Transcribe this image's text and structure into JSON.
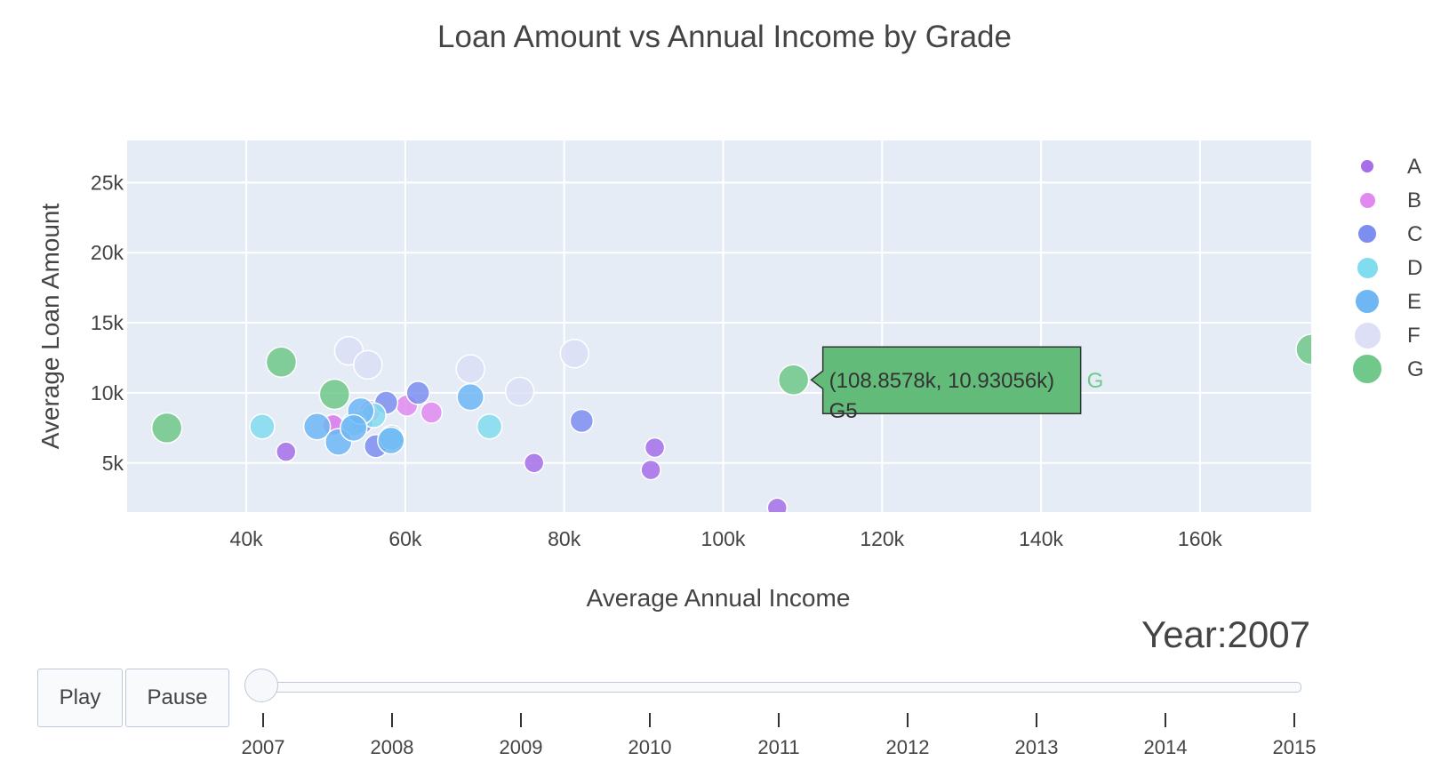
{
  "title": "Loan Amount vs Annual Income by Grade",
  "colors": {
    "plot_bg": "#e5ecf6",
    "grid": "#ffffff",
    "hover_bg": "#62bb78",
    "hover_border": "#333333"
  },
  "chart_data": {
    "type": "scatter",
    "title": "Loan Amount vs Annual Income by Grade",
    "xlabel": "Average Annual Income",
    "ylabel": "Average Loan Amount",
    "xlim": [
      25000,
      174000
    ],
    "ylim": [
      1500,
      28000
    ],
    "x_ticks": [
      40000,
      60000,
      80000,
      100000,
      120000,
      140000,
      160000
    ],
    "x_tick_labels": [
      "40k",
      "60k",
      "80k",
      "100k",
      "120k",
      "140k",
      "160k"
    ],
    "y_ticks": [
      5000,
      10000,
      15000,
      20000,
      25000
    ],
    "y_tick_labels": [
      "5k",
      "10k",
      "15k",
      "20k",
      "25k"
    ],
    "grid": true,
    "legend_position": "right",
    "series": [
      {
        "name": "A",
        "color": "#a66ee8",
        "size": 11,
        "points": [
          [
            45000,
            5800
          ],
          [
            76200,
            5000
          ],
          [
            90900,
            4500
          ],
          [
            91400,
            6100
          ],
          [
            106800,
            1800
          ],
          [
            51000,
            7700
          ]
        ]
      },
      {
        "name": "B",
        "color": "#e08af0",
        "size": 12,
        "points": [
          [
            50900,
            7700
          ],
          [
            60200,
            9100
          ],
          [
            63300,
            8600
          ],
          [
            55600,
            8700
          ]
        ]
      },
      {
        "name": "C",
        "color": "#7c8ff0",
        "size": 13,
        "points": [
          [
            57600,
            9300
          ],
          [
            61600,
            10000
          ],
          [
            56300,
            6200
          ],
          [
            82200,
            8000
          ],
          [
            54500,
            7900
          ]
        ]
      },
      {
        "name": "D",
        "color": "#82dcf0",
        "size": 14,
        "points": [
          [
            42000,
            7600
          ],
          [
            56000,
            8400
          ],
          [
            70600,
            7600
          ],
          [
            53600,
            7800
          ],
          [
            58300,
            6800
          ]
        ]
      },
      {
        "name": "E",
        "color": "#6fb7f4",
        "size": 15,
        "points": [
          [
            48900,
            7600
          ],
          [
            51600,
            6500
          ],
          [
            54400,
            8700
          ],
          [
            58200,
            6600
          ],
          [
            68200,
            9700
          ],
          [
            53500,
            7500
          ]
        ]
      },
      {
        "name": "F",
        "color": "#dcdff6",
        "size": 16,
        "points": [
          [
            52900,
            13000
          ],
          [
            55300,
            12000
          ],
          [
            68200,
            11700
          ],
          [
            74400,
            10100
          ],
          [
            81300,
            12800
          ]
        ]
      },
      {
        "name": "G",
        "color": "#70c88a",
        "size": 17,
        "points": [
          [
            30000,
            7500
          ],
          [
            44400,
            12200
          ],
          [
            51100,
            9900
          ],
          [
            108858,
            10931
          ],
          [
            174000,
            13100
          ]
        ]
      }
    ],
    "hover": {
      "series": "G",
      "x": 108857.8,
      "y": 10930.56,
      "text": "(108.8578k, 10.93056k)",
      "name": "G",
      "label": "G5"
    }
  },
  "legend": [
    {
      "label": "A",
      "color": "#a66ee8"
    },
    {
      "label": "B",
      "color": "#e08af0"
    },
    {
      "label": "C",
      "color": "#7c8ff0"
    },
    {
      "label": "D",
      "color": "#82dcf0"
    },
    {
      "label": "E",
      "color": "#6fb7f4"
    },
    {
      "label": "F",
      "color": "#dcdff6"
    },
    {
      "label": "G",
      "color": "#70c88a"
    }
  ],
  "animation": {
    "year_label": "Year:2007",
    "play_label": "Play",
    "pause_label": "Pause",
    "steps": [
      "2007",
      "2008",
      "2009",
      "2010",
      "2011",
      "2012",
      "2013",
      "2014",
      "2015"
    ],
    "current_step": "2007"
  }
}
